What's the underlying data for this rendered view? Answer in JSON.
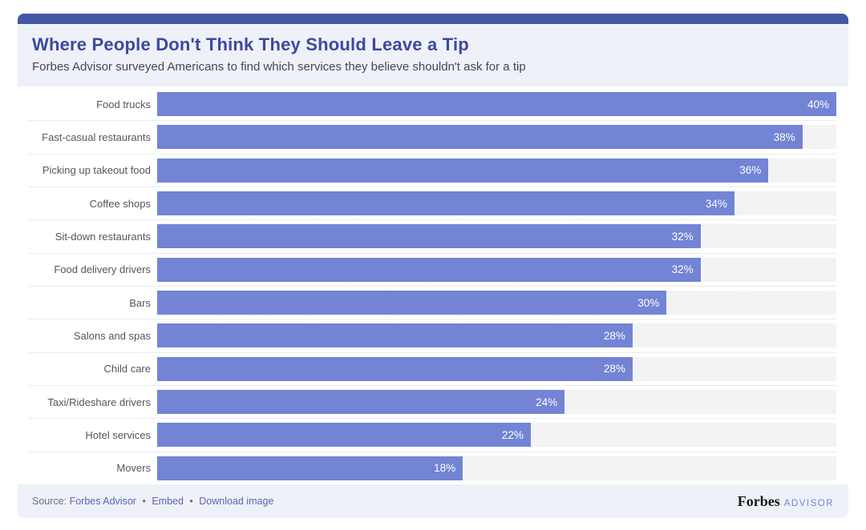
{
  "accent_color": "#4456a6",
  "header": {
    "title": "Where People Don't Think They Should Leave a Tip",
    "subtitle": "Forbes Advisor surveyed Americans to find which services they believe shouldn't ask for a tip"
  },
  "chart_data": {
    "type": "bar",
    "orientation": "horizontal",
    "title": "Where People Don't Think They Should Leave a Tip",
    "subtitle": "Forbes Advisor surveyed Americans to find which services they believe shouldn't ask for a tip",
    "categories": [
      "Food trucks",
      "Fast-casual restaurants",
      "Picking up takeout food",
      "Coffee shops",
      "Sit-down restaurants",
      "Food delivery drivers",
      "Bars",
      "Salons and spas",
      "Child care",
      "Taxi/Rideshare drivers",
      "Hotel services",
      "Movers"
    ],
    "values": [
      40,
      38,
      36,
      34,
      32,
      32,
      30,
      28,
      28,
      24,
      22,
      18
    ],
    "value_suffix": "%",
    "xlabel": "",
    "ylabel": "",
    "xlim": [
      0,
      40
    ],
    "bar_color": "#7384d4",
    "track_color": "#f3f3f4",
    "value_label_color": "#ffffff",
    "grid": "dotted-row-separators",
    "legend_position": "none"
  },
  "footer": {
    "source_label": "Source:",
    "source_link": "Forbes Advisor",
    "separator": "•",
    "embed_label": "Embed",
    "download_label": "Download image",
    "brand": {
      "forbes": "Forbes",
      "advisor": "ADVISOR"
    }
  }
}
